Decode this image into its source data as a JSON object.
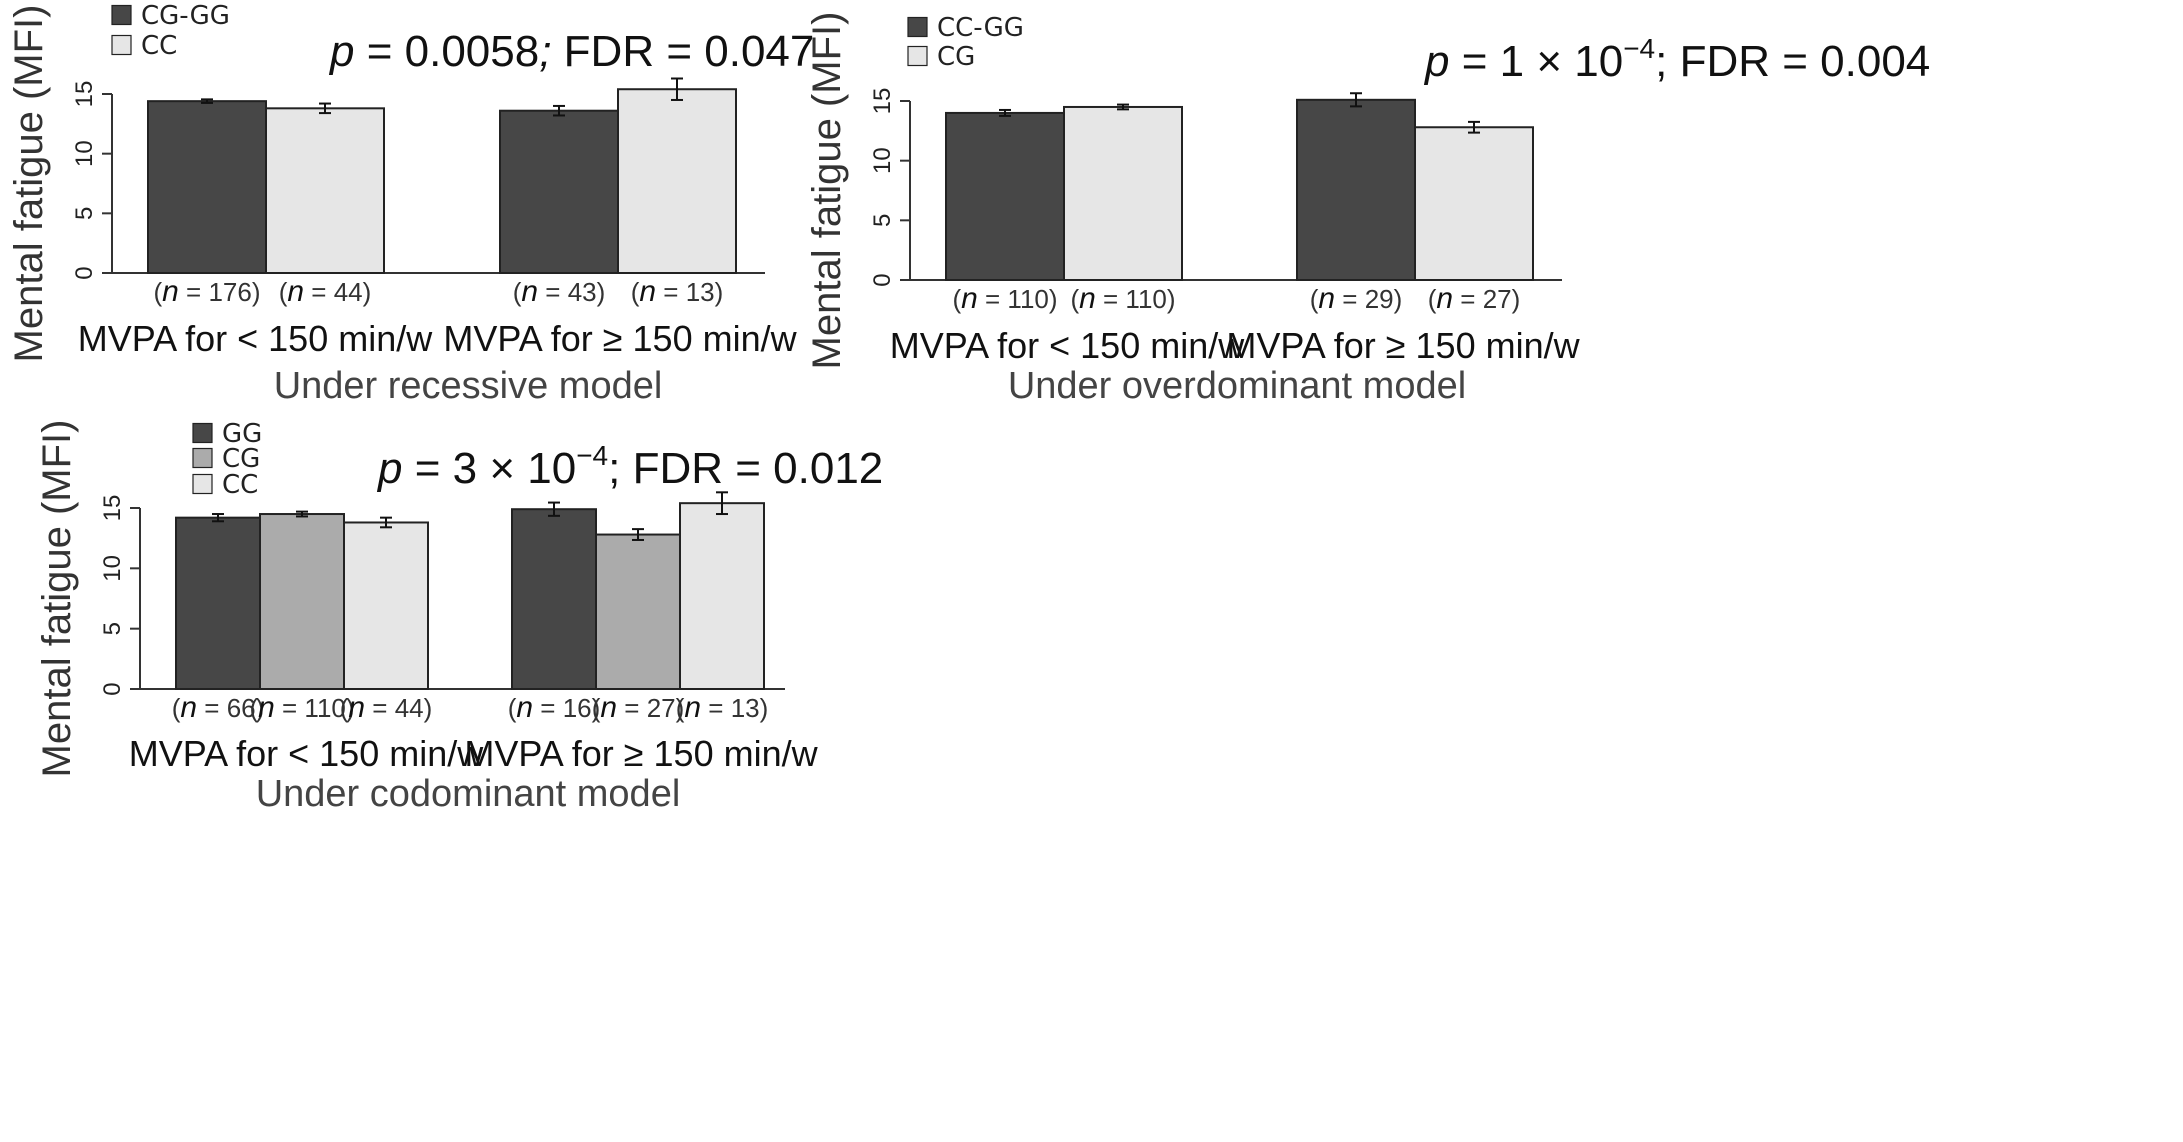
{
  "colors": {
    "dark": "#474747",
    "mid": "#ababab",
    "light": "#e6e6e6",
    "outline": "#222222"
  },
  "chart_data": [
    {
      "type": "bar",
      "title": "Under recessive model",
      "ylabel": "Mental fatigue (MFI)",
      "ylim": [
        0,
        15
      ],
      "yticks": [
        "0",
        "5",
        "10",
        "15"
      ],
      "stat": {
        "p_label": "p",
        "p_value": "= 0.0058",
        "sep": ";",
        "fdr": "FDR = 0.047"
      },
      "legend": [
        {
          "label": "CG-GG",
          "color": "#474747"
        },
        {
          "label": "CC",
          "color": "#e6e6e6"
        }
      ],
      "categories": [
        "MVPA for < 150 min/w",
        "MVPA for ≥ 150 min/w"
      ],
      "series": [
        {
          "name": "CG-GG",
          "color": "#474747",
          "values": [
            14.4,
            13.6
          ],
          "errors": [
            0.15,
            0.4
          ],
          "n": [
            "176",
            "43"
          ]
        },
        {
          "name": "CC",
          "color": "#e6e6e6",
          "values": [
            13.8,
            15.4
          ],
          "errors": [
            0.4,
            0.9
          ],
          "n": [
            "44",
            "13"
          ]
        }
      ]
    },
    {
      "type": "bar",
      "title": "Under overdominant model",
      "ylabel": "Mental fatigue (MFI)",
      "ylim": [
        0,
        15
      ],
      "yticks": [
        "0",
        "5",
        "10",
        "15"
      ],
      "stat": {
        "p_label": "p",
        "p_value": "= 1 × 10",
        "exp": "−4",
        "sep": ";",
        "fdr": "FDR = 0.004"
      },
      "legend": [
        {
          "label": "CC-GG",
          "color": "#474747"
        },
        {
          "label": "CG",
          "color": "#e6e6e6"
        }
      ],
      "categories": [
        "MVPA for < 150 min/w",
        "MVPA for ≥ 150 min/w"
      ],
      "series": [
        {
          "name": "CC-GG",
          "color": "#474747",
          "values": [
            14.0,
            15.1
          ],
          "errors": [
            0.25,
            0.55
          ],
          "n": [
            "110",
            "29"
          ]
        },
        {
          "name": "CG",
          "color": "#e6e6e6",
          "values": [
            14.5,
            12.8
          ],
          "errors": [
            0.2,
            0.45
          ],
          "n": [
            "110",
            "27"
          ]
        }
      ]
    },
    {
      "type": "bar",
      "title": "Under codominant model",
      "ylabel": "Mental fatigue (MFI)",
      "ylim": [
        0,
        15
      ],
      "yticks": [
        "0",
        "5",
        "10",
        "15"
      ],
      "stat": {
        "p_label": "p",
        "p_value": "= 3 × 10",
        "exp": "−4",
        "sep": ";",
        "fdr": "FDR = 0.012"
      },
      "legend": [
        {
          "label": "GG",
          "color": "#474747"
        },
        {
          "label": "CG",
          "color": "#ababab"
        },
        {
          "label": "CC",
          "color": "#e6e6e6"
        }
      ],
      "categories": [
        "MVPA for < 150 min/w",
        "MVPA for ≥ 150 min/w"
      ],
      "series": [
        {
          "name": "GG",
          "color": "#474747",
          "values": [
            14.2,
            14.9
          ],
          "errors": [
            0.3,
            0.55
          ],
          "n": [
            "66",
            "16"
          ]
        },
        {
          "name": "CG",
          "color": "#ababab",
          "values": [
            14.5,
            12.8
          ],
          "errors": [
            0.2,
            0.45
          ],
          "n": [
            "110",
            "27"
          ]
        },
        {
          "name": "CC",
          "color": "#e6e6e6",
          "values": [
            13.8,
            15.4
          ],
          "errors": [
            0.4,
            0.9
          ],
          "n": [
            "44",
            "13"
          ]
        }
      ]
    }
  ]
}
